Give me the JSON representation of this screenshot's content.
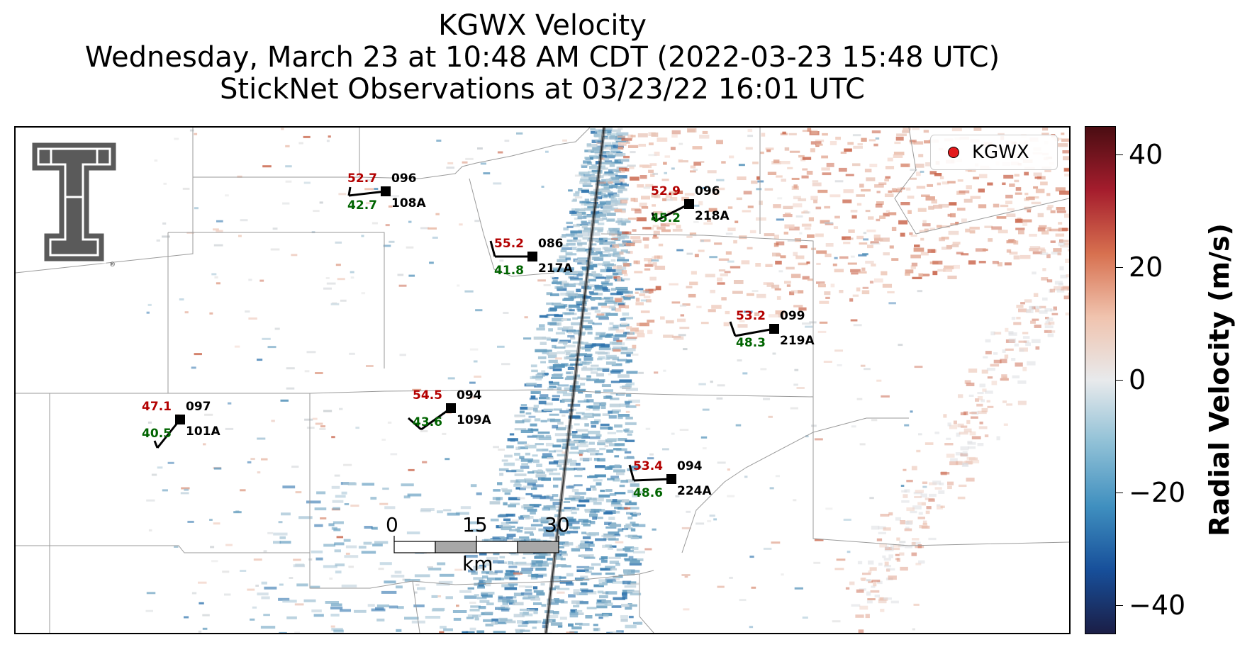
{
  "title": {
    "line1": "KGWX Velocity",
    "line2": "Wednesday, March 23 at 10:48 AM CDT (2022-03-23 15:48 UTC)",
    "line3": "StickNet Observations at 03/23/22 16:01 UTC"
  },
  "legend": {
    "label": "KGWX",
    "marker_color": "#e31a1c"
  },
  "logo": {
    "name": "texas-tech-double-t-logo",
    "registered_mark": "®"
  },
  "colorbar": {
    "label": "Radial Velocity (m/s)",
    "range": [
      -45,
      45
    ],
    "ticks": [
      "40",
      "20",
      "0",
      "−20",
      "−40"
    ],
    "colors": [
      "#1b1e46",
      "#174f9a",
      "#3f8fbf",
      "#8fc0d6",
      "#e8eaec",
      "#f0c3ae",
      "#d7704f",
      "#a51d2d",
      "#4a0d12"
    ]
  },
  "scale_bar": {
    "labels": [
      "0",
      "15",
      "30"
    ],
    "unit": "km"
  },
  "stations": [
    {
      "id": "108A",
      "temp": "52.7",
      "dew": "42.7",
      "dir": "096"
    },
    {
      "id": "218A",
      "temp": "52.9",
      "dew": "45.2",
      "dir": "096"
    },
    {
      "id": "217A",
      "temp": "55.2",
      "dew": "41.8",
      "dir": "086"
    },
    {
      "id": "219A",
      "temp": "53.2",
      "dew": "48.3",
      "dir": "099"
    },
    {
      "id": "101A",
      "temp": "47.1",
      "dew": "40.5",
      "dir": "097"
    },
    {
      "id": "109A",
      "temp": "54.5",
      "dew": "43.6",
      "dir": "094"
    },
    {
      "id": "224A",
      "temp": "53.4",
      "dew": "48.6",
      "dir": "094"
    }
  ],
  "colors": {
    "temp": "#b30000",
    "dew": "#006400",
    "barb": "#000000"
  }
}
